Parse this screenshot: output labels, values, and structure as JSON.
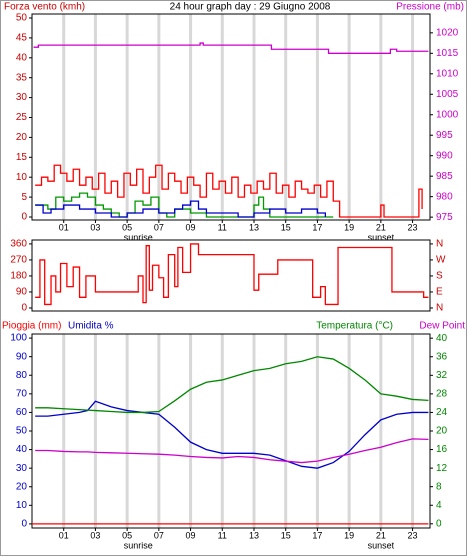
{
  "chart_data": [
    {
      "type": "line",
      "step": true,
      "title": "24 hour graph day : 29 Giugno 2008",
      "y_label": "Forza vento (kmh)",
      "y2_label": "Pressione (mb)",
      "ycolor": "#cc0000",
      "y2color": "#cc00cc",
      "grid": true,
      "xlim": [
        -1,
        24.1
      ],
      "xticks": [
        {
          "value": 1,
          "label": "01"
        },
        {
          "value": 3,
          "label": "03"
        },
        {
          "value": 5,
          "label": "05"
        },
        {
          "value": 7,
          "label": "07"
        },
        {
          "value": 9,
          "label": "09"
        },
        11,
        13,
        15,
        17,
        19,
        21,
        23
      ],
      "ylim": [
        -0.75,
        51
      ],
      "yticks": [
        0,
        5,
        10,
        15,
        20,
        25,
        30,
        35,
        40,
        45,
        50
      ],
      "y2lim": [
        974.3,
        1024.6
      ],
      "y2ticks": [
        975,
        980,
        985,
        990,
        995,
        1000,
        1005,
        1010,
        1015,
        1020
      ],
      "annotations": [
        {
          "text": "sunrise",
          "x": 5.7
        },
        {
          "text": "sunset",
          "x": 21
        }
      ],
      "series": [
        {
          "color": "#ff0000",
          "x": [
            -0.8,
            -0.4,
            0,
            0.4,
            0.8,
            1.2,
            1.6,
            2,
            2.4,
            2.8,
            3.2,
            3.6,
            4,
            4.4,
            4.8,
            5.2,
            5.6,
            6,
            6.4,
            6.8,
            7.2,
            7.6,
            8,
            8.4,
            8.8,
            9.2,
            9.6,
            10,
            10.4,
            10.8,
            11.2,
            11.6,
            12,
            12.4,
            12.8,
            13.2,
            13.6,
            14,
            14.4,
            14.8,
            15.2,
            15.6,
            16,
            16.4,
            16.8,
            17.2,
            17.6,
            18,
            18.4,
            21,
            21.2,
            23.4,
            23.6
          ],
          "values": [
            8,
            10,
            9,
            13,
            11,
            9,
            12,
            8,
            10,
            7,
            11,
            6,
            9,
            5,
            11,
            8,
            12,
            6,
            10,
            13,
            7,
            11,
            9,
            6,
            10,
            8,
            5,
            11,
            7,
            9,
            6,
            10,
            5,
            8,
            6,
            9,
            7,
            11,
            6,
            8,
            5,
            9,
            7,
            6,
            8,
            5,
            9,
            4,
            0,
            3,
            0,
            7,
            2
          ]
        },
        {
          "color": "#009900",
          "x": [
            -0.8,
            0,
            0.5,
            1,
            1.5,
            2,
            2.5,
            3,
            3.5,
            4,
            4.5,
            5,
            5.5,
            6,
            6.5,
            7,
            7.5,
            8,
            9,
            10,
            12,
            13,
            13.3,
            13.6,
            14,
            18
          ],
          "values": [
            3,
            2,
            5,
            4,
            5,
            6,
            5,
            3,
            2,
            1,
            0,
            1,
            4,
            3,
            5,
            1,
            0,
            2,
            1,
            0,
            0,
            3,
            5,
            2,
            0,
            0
          ]
        },
        {
          "color": "#0000cc",
          "x": [
            -0.8,
            -0.3,
            0.2,
            1,
            2,
            3,
            4,
            5,
            6,
            7,
            8,
            8.5,
            9,
            9.5,
            10,
            11,
            12,
            13,
            14,
            15,
            16,
            17,
            17.5
          ],
          "values": [
            3,
            1,
            2,
            3,
            2,
            1,
            0,
            1,
            2,
            1,
            2,
            3,
            4,
            2,
            1,
            1,
            0,
            1,
            2,
            1,
            2,
            1,
            0
          ]
        },
        {
          "color": "#cc00cc",
          "axis": "y2",
          "x": [
            -0.9,
            -0.6,
            9.6,
            9.8,
            14.1,
            17.7,
            21.6,
            22,
            24
          ],
          "values": [
            1016.5,
            1017,
            1017.5,
            1017,
            1016,
            1015,
            1016,
            1015.5,
            1015.5
          ]
        }
      ]
    },
    {
      "type": "line",
      "step": true,
      "ycolor": "#cc0000",
      "y2color": "#cc0000",
      "grid": false,
      "xlim": [
        -1,
        24.1
      ],
      "ylim": [
        -17,
        382
      ],
      "yticks": [
        0,
        90,
        180,
        270,
        360
      ],
      "y2lim": [
        -17,
        382
      ],
      "y2ticks": [
        {
          "value": 0,
          "label": "N"
        },
        {
          "value": 90,
          "label": "E"
        },
        {
          "value": 180,
          "label": "S"
        },
        {
          "value": 270,
          "label": "W"
        },
        {
          "value": 360,
          "label": "N"
        }
      ],
      "series": [
        {
          "color": "#ff0000",
          "x": [
            -0.8,
            -0.5,
            -0.2,
            0.2,
            0.5,
            0.8,
            1.2,
            1.6,
            2,
            2.4,
            3,
            5.4,
            5.7,
            6,
            6.2,
            6.4,
            6.6,
            7,
            7.3,
            7.6,
            8,
            8.2,
            8.5,
            9,
            9.5,
            12.8,
            13,
            13.3,
            14.3,
            14.5,
            16.5,
            16.7,
            17.2,
            17.5,
            18.3,
            21.7,
            23.7,
            24
          ],
          "values": [
            60,
            270,
            20,
            180,
            90,
            250,
            120,
            230,
            60,
            180,
            90,
            90,
            180,
            30,
            350,
            100,
            240,
            170,
            60,
            300,
            120,
            340,
            200,
            360,
            300,
            300,
            100,
            190,
            190,
            270,
            270,
            60,
            120,
            20,
            340,
            90,
            60,
            60
          ]
        }
      ]
    },
    {
      "type": "line",
      "step": false,
      "ycolor": "#0000cc",
      "y2color": "#008800",
      "grid": true,
      "xlim": [
        -1,
        24.1
      ],
      "xticks": [
        {
          "value": 1,
          "label": "01"
        },
        {
          "value": 3,
          "label": "03"
        },
        {
          "value": 5,
          "label": "05"
        },
        {
          "value": 7,
          "label": "07"
        },
        {
          "value": 9,
          "label": "09"
        },
        11,
        13,
        15,
        17,
        19,
        21,
        23
      ],
      "ylim": [
        -2.2,
        102.2
      ],
      "yticks": [
        0,
        10,
        20,
        30,
        40,
        50,
        60,
        70,
        80,
        90,
        100
      ],
      "y2lim": [
        -0.9,
        40.9
      ],
      "y2ticks": [
        0,
        4,
        8,
        12,
        16,
        20,
        24,
        28,
        32,
        36,
        40
      ],
      "annotations": [
        {
          "text": "sunrise",
          "x": 5.7
        },
        {
          "text": "sunset",
          "x": 21
        }
      ],
      "series": [
        {
          "name": "Pioggia (mm)",
          "color": "#ff0000",
          "x": [
            -1,
            24
          ],
          "values": [
            0,
            0
          ]
        },
        {
          "name": "Umidita %",
          "color": "#0000cc",
          "x": [
            -0.8,
            0,
            1,
            2,
            2.5,
            3,
            4,
            5,
            6,
            7,
            8,
            9,
            10,
            11,
            12,
            13,
            14,
            15,
            16,
            17,
            18,
            19,
            20,
            21,
            22,
            23,
            24
          ],
          "values": [
            58,
            58,
            59,
            60,
            61,
            66,
            63,
            61,
            60,
            59,
            52,
            44,
            40,
            38,
            38,
            38,
            37,
            34,
            31,
            30,
            33,
            39,
            48,
            56,
            59,
            60,
            60
          ]
        },
        {
          "name": "Temperatura (°C)",
          "color": "#008800",
          "axis": "y2",
          "x": [
            -0.8,
            0,
            1,
            2,
            2.5,
            3,
            4,
            5,
            6,
            7,
            8,
            9,
            10,
            11,
            12,
            13,
            14,
            15,
            16,
            17,
            18,
            19,
            20,
            21,
            22,
            23,
            24
          ],
          "values": [
            25,
            25,
            24.8,
            24.6,
            24.5,
            24.4,
            24.2,
            24,
            24,
            24.2,
            26.5,
            29,
            30.5,
            31,
            32,
            33,
            33.5,
            34.5,
            35,
            36,
            35.5,
            33.5,
            31,
            28,
            27.5,
            26.8,
            26.6
          ]
        },
        {
          "name": "Dew Point",
          "color": "#cc00cc",
          "axis": "y2",
          "x": [
            -0.8,
            0,
            1,
            2,
            2.5,
            3,
            4,
            5,
            6,
            7,
            8,
            9,
            10,
            11,
            12,
            13,
            14,
            15,
            16,
            17,
            18,
            19,
            20,
            21,
            22,
            23,
            24
          ],
          "values": [
            15.8,
            15.8,
            15.6,
            15.5,
            15.5,
            15.4,
            15.3,
            15.2,
            15.1,
            15,
            14.8,
            14.5,
            14.3,
            14.2,
            14.5,
            14.3,
            13.8,
            13.5,
            13.2,
            13.5,
            14.3,
            15,
            15.8,
            16.5,
            17.5,
            18.3,
            18.2
          ]
        }
      ]
    }
  ]
}
